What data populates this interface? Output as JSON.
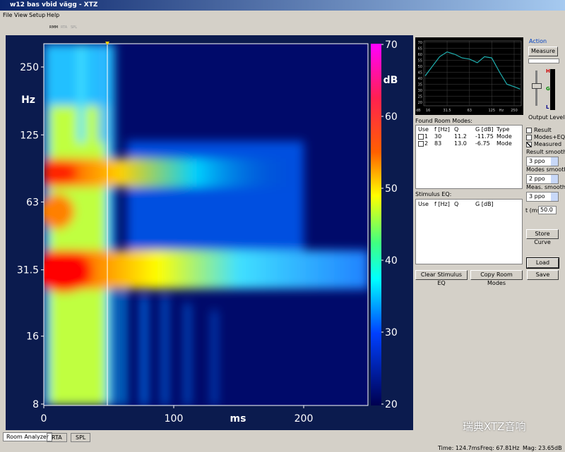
{
  "window": {
    "title": "w12 bas vbid vägg - XTZ"
  },
  "menu": [
    "File",
    "View",
    "Setup",
    "Help"
  ],
  "toolbar": [
    "RMM",
    "RTA",
    "SPL"
  ],
  "spectrogram": {
    "y_label": "Hz",
    "x_label": "ms",
    "colorbar_label": "dB",
    "yticks": [
      250,
      125,
      63,
      31.5,
      16,
      8
    ],
    "xticks": [
      0,
      100,
      200
    ],
    "colorbar_ticks": [
      70,
      60,
      50,
      40,
      30,
      20
    ]
  },
  "response_plot": {
    "yticks": [
      70,
      65,
      60,
      55,
      50,
      45,
      40,
      35,
      30,
      25,
      20
    ],
    "xticks": [
      16,
      31.5,
      63,
      125,
      250
    ],
    "x_unit": "Hz",
    "y_unit": "dB",
    "freq": [
      16,
      20,
      25,
      31.5,
      40,
      50,
      63,
      80,
      100,
      125,
      160,
      200,
      250,
      300
    ],
    "level": [
      42,
      50,
      58,
      62,
      60,
      57,
      56,
      53,
      58,
      57,
      45,
      35,
      33,
      31
    ]
  },
  "action": {
    "title": "Action",
    "measure": "Measure",
    "output_level": "Output Level",
    "meter_labels": [
      "H",
      "G",
      "L"
    ]
  },
  "room_modes": {
    "title": "Found Room Modes:",
    "columns": [
      "Use",
      "f [Hz]",
      "Q",
      "G [dB]",
      "Type"
    ],
    "rows": [
      [
        "1",
        "30",
        "11.2",
        "-11.75",
        "Mode"
      ],
      [
        "2",
        "83",
        "13.0",
        "-6.75",
        "Mode"
      ]
    ]
  },
  "display": {
    "checkboxes": [
      {
        "label": "Result",
        "checked": false
      },
      {
        "label": "Modes+EQ",
        "checked": false
      },
      {
        "label": "Measured",
        "checked": true
      }
    ],
    "smoothing": [
      {
        "label": "Result smooth:",
        "value": "3 ppo"
      },
      {
        "label": "Modes smooth:",
        "value": "2 ppo"
      },
      {
        "label": "Meas. smooth:",
        "value": "3 ppo"
      }
    ],
    "t_label": "t (ms)",
    "t_value": "50.0"
  },
  "stimulus_eq": {
    "title": "Stimulus EQ:",
    "columns": [
      "Use",
      "f [Hz]",
      "Q",
      "G [dB]"
    ]
  },
  "buttons": {
    "clear": "Clear Stimulus EQ",
    "copy": "Copy Room Modes",
    "store": "Store Curve",
    "load": "Load",
    "save": "Save"
  },
  "tabs": [
    "Room Analyzer",
    "RTA",
    "SPL"
  ],
  "status": [
    "Time: 124.7ms",
    "Freq: 67.81Hz",
    "Mag: 23.65dB"
  ],
  "watermark": "瑞典XTZ音响"
}
